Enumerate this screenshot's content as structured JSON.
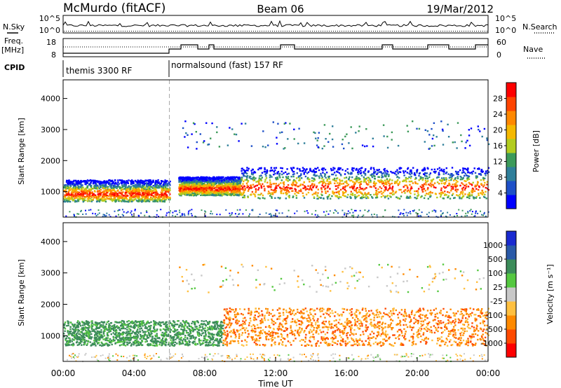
{
  "header": {
    "station": "McMurdo (fitACF)",
    "beam": "Beam 06",
    "date": "19/Mar/2012"
  },
  "side_labels": {
    "nsky": "N.Sky",
    "freq_line1": "Freq.",
    "freq_line2": "[MHz]",
    "cpid": "CPID",
    "nsearch": "N.Search",
    "nave": "Nave"
  },
  "small_axes": {
    "nsky_left_ticks": [
      "10^5",
      "10^0"
    ],
    "nsearch_right_ticks": [
      "10^5",
      "10^0"
    ],
    "freq_ticks": [
      "18",
      "8"
    ],
    "nave_ticks": [
      "60",
      "0"
    ]
  },
  "cpid_labels": [
    {
      "text": "themis 3300 RF",
      "start_hour": 0
    },
    {
      "text": "normalsound (fast) 157 RF",
      "start_hour": 6
    }
  ],
  "chart_data": [
    {
      "type": "heatmap",
      "panel": "power",
      "xlabel": "Time UT",
      "ylabel": "Slant Range [km]",
      "xlim_hours": [
        0,
        24
      ],
      "ylim_km": [
        180,
        4600
      ],
      "yticks": [
        1000,
        2000,
        3000,
        4000
      ],
      "colorbar": {
        "label": "Power [dB]",
        "ticks": [
          "28",
          "24",
          "20",
          "16",
          "12",
          "8",
          "4"
        ],
        "colors": [
          "#0000ff",
          "#1e50c8",
          "#2f7f9a",
          "#3c9a5a",
          "#b2cc1f",
          "#f5b800",
          "#ff8800",
          "#ff4400",
          "#ff0000"
        ]
      },
      "echo_regions": [
        {
          "from_hour": 0,
          "to_hour": 6,
          "range_km": [
            700,
            1400
          ],
          "level": "high"
        },
        {
          "from_hour": 6.5,
          "to_hour": 10,
          "range_km": [
            900,
            1500
          ],
          "level": "high"
        },
        {
          "from_hour": 10,
          "to_hour": 24,
          "range_km": [
            800,
            1800
          ],
          "level": "high"
        },
        {
          "from_hour": 6.5,
          "to_hour": 24,
          "range_km": [
            2400,
            3300
          ],
          "level": "low"
        }
      ]
    },
    {
      "type": "heatmap",
      "panel": "velocity",
      "xlabel": "Time UT",
      "ylabel": "Slant Range [km]",
      "xlim_hours": [
        0,
        24
      ],
      "ylim_km": [
        180,
        4600
      ],
      "yticks": [
        1000,
        2000,
        3000,
        4000
      ],
      "colorbar": {
        "label": "Velocity [m s⁻¹]",
        "ticks": [
          "1000",
          "500",
          "100",
          "25",
          "-25",
          "-100",
          "-500",
          "-1000"
        ],
        "colors": [
          "#ff0000",
          "#ff4a00",
          "#ff8a00",
          "#ffc040",
          "#c8c8c8",
          "#55c840",
          "#3c8c5a",
          "#2a5aa8",
          "#1a2ad0"
        ]
      },
      "echo_regions": [
        {
          "from_hour": 0,
          "to_hour": 9,
          "range_km": [
            700,
            1500
          ],
          "sign": "positive"
        },
        {
          "from_hour": 9,
          "to_hour": 24,
          "range_km": [
            700,
            1900
          ],
          "sign": "negative"
        },
        {
          "from_hour": 6.5,
          "to_hour": 24,
          "range_km": [
            2400,
            3300
          ],
          "sign": "mixed"
        }
      ]
    }
  ],
  "x_axis": {
    "tick_labels": [
      "00:00",
      "04:00",
      "08:00",
      "12:00",
      "16:00",
      "20:00",
      "00:00"
    ],
    "label": "Time UT"
  }
}
